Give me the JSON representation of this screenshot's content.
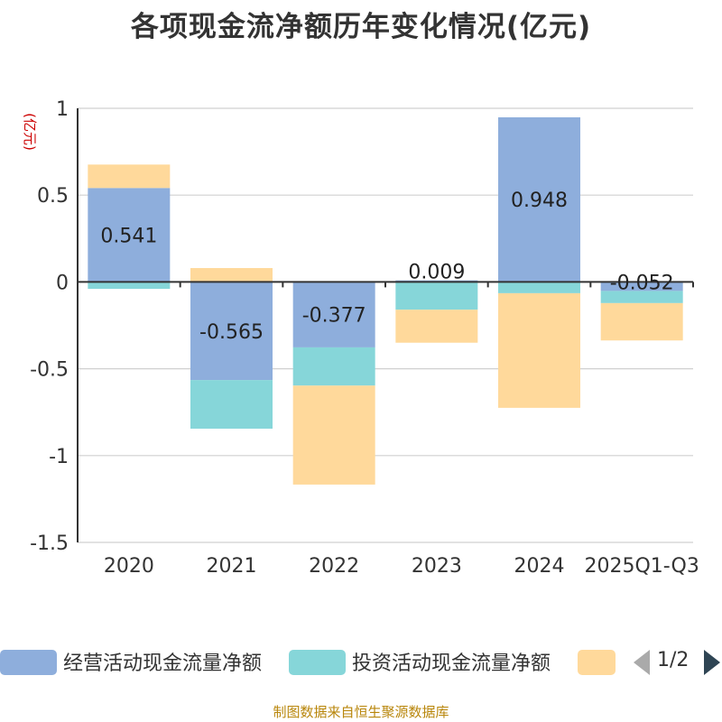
{
  "title": "各项现金流净额历年变化情况(亿元)",
  "source": "制图数据来自恒生聚源数据库",
  "colors": {
    "operating": "#8eaedc",
    "investing": "#86d6d9",
    "financing": "#ffd99b",
    "axis": "#333333",
    "grid": "#d0d0d0",
    "unit": "#cc0000"
  },
  "legend": {
    "items": [
      "经营活动现金流量净额",
      "投资活动现金流量净额",
      ""
    ],
    "page": "1/2"
  },
  "chart_data": {
    "type": "bar",
    "stacked": true,
    "title": "各项现金流净额历年变化情况(亿元)",
    "ylabel": "(亿元)",
    "ylim": [
      -1.5,
      1
    ],
    "yticks": [
      1,
      0.5,
      0,
      -0.5,
      -1,
      -1.5
    ],
    "ytick_labels": [
      "1",
      "0.5",
      "0",
      "-0.5",
      "-1",
      "-1.5"
    ],
    "categories": [
      "2020",
      "2021",
      "2022",
      "2023",
      "2024",
      "2025Q1-Q3"
    ],
    "series": [
      {
        "name": "经营活动现金流量净额",
        "key": "operating",
        "values": [
          0.541,
          -0.565,
          -0.377,
          0.009,
          0.948,
          -0.052
        ]
      },
      {
        "name": "投资活动现金流量净额",
        "key": "investing",
        "values": [
          -0.04,
          -0.28,
          -0.22,
          -0.16,
          -0.065,
          -0.07
        ]
      },
      {
        "name": "",
        "key": "financing",
        "values": [
          0.135,
          0.08,
          -0.57,
          -0.19,
          -0.66,
          -0.215
        ]
      }
    ],
    "data_labels": [
      "0.541",
      "-0.565",
      "-0.377",
      "0.009",
      "0.948",
      "-0.052"
    ]
  }
}
